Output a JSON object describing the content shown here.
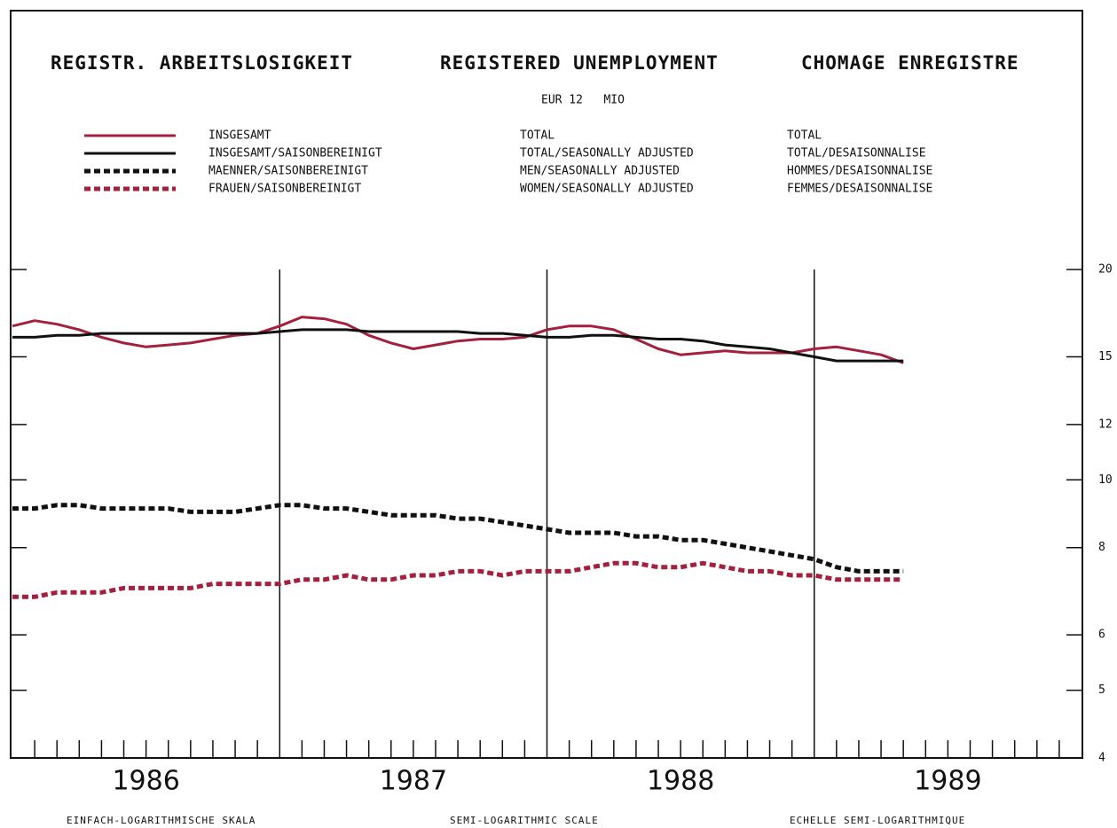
{
  "chart_data": {
    "type": "line",
    "title": "REGISTR. ARBEITSLOSIGKEIT",
    "title_en": "REGISTERED UNEMPLOYMENT",
    "title_fr": "CHOMAGE ENREGISTRE",
    "subtitle": "EUR 12   MIO",
    "footer": "EINFACH-LOGARITHMISCHE SKALA",
    "footer_en": "SEMI-LOGARITHMIC SCALE",
    "footer_fr": "ECHELLE SEMI-LOGARITHMIQUE",
    "log_scale": true,
    "x": [
      0,
      1,
      2,
      3,
      4,
      5,
      6,
      7,
      8,
      9,
      10,
      11,
      12,
      13,
      14,
      15,
      16,
      17,
      18,
      19,
      20,
      21,
      22,
      23,
      24,
      25,
      26,
      27,
      28,
      29,
      30,
      31,
      32,
      33,
      34,
      35,
      36,
      37,
      38,
      39,
      40
    ],
    "xlim": [
      0,
      48
    ],
    "xticks": [
      {
        "value": 6,
        "label": "1986"
      },
      {
        "value": 18,
        "label": "1987"
      },
      {
        "value": 30,
        "label": "1988"
      },
      {
        "value": 42,
        "label": "1989"
      }
    ],
    "year_lines": [
      12,
      24,
      36
    ],
    "minor_xticks": [
      1,
      2,
      3,
      4,
      5,
      6,
      7,
      8,
      9,
      10,
      11,
      13,
      14,
      15,
      16,
      17,
      18,
      19,
      20,
      21,
      22,
      23,
      25,
      26,
      27,
      28,
      29,
      30,
      31,
      32,
      33,
      34,
      35,
      37,
      38,
      39,
      40,
      41,
      42,
      43,
      44,
      45,
      46,
      47
    ],
    "ylim": [
      4,
      20
    ],
    "yticks": [
      4,
      5,
      6,
      8,
      10,
      12,
      15,
      20
    ],
    "series": [
      {
        "name": "INSGESAMT",
        "name_en": "TOTAL",
        "name_fr": "TOTAL",
        "color": "#a3203e",
        "style": "solid",
        "values": [
          16.6,
          16.9,
          16.7,
          16.4,
          16.0,
          15.7,
          15.5,
          15.6,
          15.7,
          15.9,
          16.1,
          16.2,
          16.6,
          17.1,
          17.0,
          16.7,
          16.1,
          15.7,
          15.4,
          15.6,
          15.8,
          15.9,
          15.9,
          16.0,
          16.4,
          16.6,
          16.6,
          16.4,
          15.9,
          15.4,
          15.1,
          15.2,
          15.3,
          15.2,
          15.2,
          15.2,
          15.4,
          15.5,
          15.3,
          15.1,
          14.7
        ]
      },
      {
        "name": "INSGESAMT/SAISONBEREINIGT",
        "name_en": "TOTAL/SEASONALLY ADJUSTED",
        "name_fr": "TOTAL/DESAISONNALISE",
        "color": "#111111",
        "style": "solid",
        "values": [
          16.0,
          16.0,
          16.1,
          16.1,
          16.2,
          16.2,
          16.2,
          16.2,
          16.2,
          16.2,
          16.2,
          16.2,
          16.3,
          16.4,
          16.4,
          16.4,
          16.3,
          16.3,
          16.3,
          16.3,
          16.3,
          16.2,
          16.2,
          16.1,
          16.0,
          16.0,
          16.1,
          16.1,
          16.0,
          15.9,
          15.9,
          15.8,
          15.6,
          15.5,
          15.4,
          15.2,
          15.0,
          14.8,
          14.8,
          14.8,
          14.8
        ]
      },
      {
        "name": "MAENNER/SAISONBEREINIGT",
        "name_en": "MEN/SEASONALLY ADJUSTED",
        "name_fr": "HOMMES/DESAISONNALISE",
        "color": "#111111",
        "style": "dotted",
        "values": [
          9.1,
          9.1,
          9.2,
          9.2,
          9.1,
          9.1,
          9.1,
          9.1,
          9.0,
          9.0,
          9.0,
          9.1,
          9.2,
          9.2,
          9.1,
          9.1,
          9.0,
          8.9,
          8.9,
          8.9,
          8.8,
          8.8,
          8.7,
          8.6,
          8.5,
          8.4,
          8.4,
          8.4,
          8.3,
          8.3,
          8.2,
          8.2,
          8.1,
          8.0,
          7.9,
          7.8,
          7.7,
          7.5,
          7.4,
          7.4,
          7.4
        ]
      },
      {
        "name": "FRAUEN/SAISONBEREINIGT",
        "name_en": "WOMEN/SEASONALLY ADJUSTED",
        "name_fr": "FEMMES/DESAISONNALISE",
        "color": "#a3203e",
        "style": "dotted",
        "values": [
          6.8,
          6.8,
          6.9,
          6.9,
          6.9,
          7.0,
          7.0,
          7.0,
          7.0,
          7.1,
          7.1,
          7.1,
          7.1,
          7.2,
          7.2,
          7.3,
          7.2,
          7.2,
          7.3,
          7.3,
          7.4,
          7.4,
          7.3,
          7.4,
          7.4,
          7.4,
          7.5,
          7.6,
          7.6,
          7.5,
          7.5,
          7.6,
          7.5,
          7.4,
          7.4,
          7.3,
          7.3,
          7.2,
          7.2,
          7.2,
          7.2
        ]
      }
    ]
  }
}
